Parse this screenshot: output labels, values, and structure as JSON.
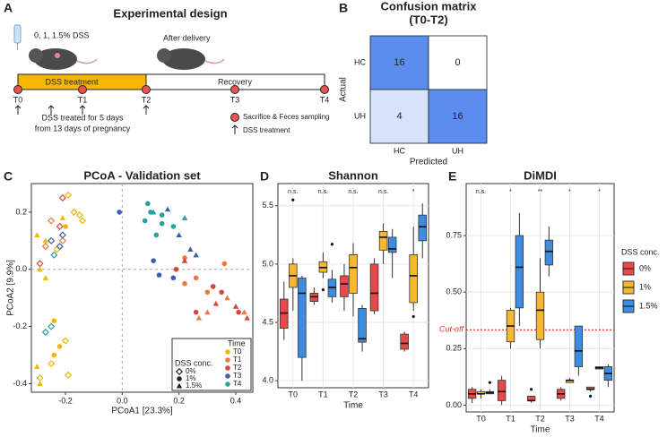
{
  "panel_labels": [
    "A",
    "B",
    "C",
    "D",
    "E"
  ],
  "diagram": {
    "title": "Experimental design",
    "dose": "0, 1, 1.5% DSS",
    "after": "After delivery",
    "phases": [
      "DSS treatment",
      "Recovery"
    ],
    "timepoints": [
      "T0",
      "T1",
      "T2",
      "T3",
      "T4"
    ],
    "note": [
      "DSS treated for 5 days",
      "from 13 days of pregnancy"
    ],
    "legend": [
      "Sacrifice & Feces sampling",
      "DSS treatment"
    ]
  },
  "chart_data": [
    {
      "type": "heatmap",
      "title": [
        "Confusion matrix",
        "(T0-T2)"
      ],
      "x_categories": [
        "HC",
        "UH"
      ],
      "y_categories": [
        "HC",
        "UH"
      ],
      "values": [
        [
          16,
          0
        ],
        [
          4,
          16
        ]
      ],
      "colors": [
        "#ffffff",
        "#5b8def"
      ],
      "xlabel": "Predicted",
      "ylabel": "Actual"
    },
    {
      "type": "scatter",
      "title": "PCoA - Validation set",
      "xlabel": "PCoA1  [23.3%]",
      "ylabel": "PCoA2  [9.9%]",
      "xlim": [
        -0.32,
        0.46
      ],
      "ylim": [
        -0.43,
        0.3
      ],
      "xticks": [
        -0.2,
        {
          "value": 0,
          "label": "0.0"
        },
        0.2,
        0.4
      ],
      "yticks": [
        -0.4,
        -0.2,
        {
          "value": 0,
          "label": "0.0"
        },
        0.2
      ],
      "zero_lines": true,
      "legend_time": {
        "title": "Time"
      },
      "legend_shape": {
        "title": "DSS conc.",
        "entries": [
          {
            "name": "0%",
            "shape": "diamond"
          },
          {
            "name": "1%",
            "shape": "circle"
          },
          {
            "name": "1.5%",
            "shape": "triangle"
          }
        ]
      },
      "series": [
        {
          "name": "T0",
          "color": "#f2b705",
          "groups": [
            {
              "shape": "diamond",
              "x": [
                -0.19,
                -0.17,
                -0.15,
                -0.14,
                -0.23,
                -0.2,
                -0.25,
                -0.29,
                -0.19
              ],
              "y": [
                0.26,
                0.2,
                0.19,
                0.17,
                0.07,
                -0.25,
                -0.33,
                -0.38,
                -0.37
              ]
            },
            {
              "shape": "circle",
              "x": [
                -0.2,
                -0.24,
                -0.22,
                -0.24
              ],
              "y": [
                0.15,
                -0.18,
                -0.27,
                -0.3
              ]
            },
            {
              "shape": "triangle",
              "x": [
                -0.3,
                -0.27,
                -0.29,
                -0.27,
                -0.3,
                -0.29,
                -0.21
              ],
              "y": [
                0.12,
                0.1,
                0.0,
                -0.03,
                -0.34,
                -0.4,
                0.18
              ]
            }
          ]
        },
        {
          "name": "T1",
          "color": "#ec7a3a",
          "groups": [
            {
              "shape": "diamond",
              "x": [
                -0.25,
                -0.27,
                -0.21
              ],
              "y": [
                0.17,
                0.08,
                0.1
              ]
            },
            {
              "shape": "circle",
              "x": [
                0.22,
                0.26,
                0.3,
                0.22,
                0.36
              ],
              "y": [
                0.04,
                -0.03,
                -0.08,
                -0.05,
                0.02
              ]
            },
            {
              "shape": "triangle",
              "x": [
                0.37,
                0.3,
                0.43,
                0.27
              ],
              "y": [
                -0.1,
                -0.15,
                -0.15,
                -0.17
              ]
            }
          ]
        },
        {
          "name": "T2",
          "color": "#d8453b",
          "groups": [
            {
              "shape": "diamond",
              "x": [
                -0.21,
                -0.29,
                -0.22
              ],
              "y": [
                0.25,
                0.02,
                0.15
              ]
            },
            {
              "shape": "circle",
              "x": [
                0.32,
                0.26,
                0.19,
                0.35,
                0.41
              ],
              "y": [
                -0.06,
                -0.15,
                0.0,
                -0.08,
                -0.15
              ]
            },
            {
              "shape": "triangle",
              "x": [
                0.4,
                0.44,
                0.33,
                0.22
              ],
              "y": [
                -0.13,
                -0.17,
                -0.12,
                0.03
              ]
            }
          ]
        },
        {
          "name": "T3",
          "color": "#3a5fae",
          "groups": [
            {
              "shape": "diamond",
              "x": [
                -0.21,
                -0.25,
                -0.22
              ],
              "y": [
                0.12,
                0.1,
                0.08
              ]
            },
            {
              "shape": "circle",
              "x": [
                -0.01,
                0.13,
                0.18,
                0.11
              ],
              "y": [
                0.2,
                -0.02,
                -0.03,
                0.03
              ]
            },
            {
              "shape": "triangle",
              "x": [
                0.16,
                0.2,
                0.24,
                0.26
              ],
              "y": [
                0.21,
                0.12,
                0.07,
                0.05
              ]
            }
          ]
        },
        {
          "name": "T4",
          "color": "#2aa198",
          "groups": [
            {
              "shape": "diamond",
              "x": [
                -0.25,
                -0.27,
                -0.24
              ],
              "y": [
                -0.2,
                -0.22,
                0.05
              ]
            },
            {
              "shape": "circle",
              "x": [
                0.09,
                0.1,
                0.14,
                0.14,
                0.12,
                0.18,
                0.08
              ],
              "y": [
                0.23,
                0.2,
                0.16,
                0.19,
                0.12,
                0.15,
                0.17
              ]
            },
            {
              "shape": "triangle",
              "x": [
                0.11,
                0.22
              ],
              "y": [
                0.2,
                0.18
              ]
            }
          ]
        }
      ]
    },
    {
      "type": "box",
      "title": "Shannon",
      "xlabel": "Time",
      "categories": [
        "T0",
        "T1",
        "T2",
        "T3",
        "T4"
      ],
      "annotations": [
        "n.s.",
        "n.s.",
        "n.s.",
        "n.s.",
        "*"
      ],
      "ylim": [
        3.94,
        5.69
      ],
      "yticks": [
        {
          "value": 4,
          "label": "4.0"
        },
        4.5,
        {
          "value": 5,
          "label": "5.0"
        },
        5.5
      ],
      "grid": true,
      "legend": false,
      "series": [
        {
          "color": "#e84a4a",
          "boxes": [
            {
              "low": 4.35,
              "q1": 4.45,
              "median": 4.58,
              "q3": 4.7,
              "high": 4.85
            },
            {
              "low": 4.65,
              "q1": 4.68,
              "median": 4.72,
              "q3": 4.75,
              "high": 4.8
            },
            {
              "low": 4.6,
              "q1": 4.72,
              "median": 4.83,
              "q3": 4.9,
              "high": 5.0
            },
            {
              "low": 4.57,
              "q1": 4.6,
              "median": 4.75,
              "q3": 5.0,
              "high": 5.05
            },
            {
              "low": 4.25,
              "q1": 4.27,
              "median": 4.32,
              "q3": 4.4,
              "high": 4.42
            }
          ]
        },
        {
          "color": "#f7b731",
          "boxes": [
            {
              "low": 4.6,
              "q1": 4.8,
              "median": 4.9,
              "q3": 5.0,
              "high": 5.05,
              "outliers": [
                5.55
              ]
            },
            {
              "low": 4.88,
              "q1": 4.93,
              "median": 4.97,
              "q3": 5.02,
              "high": 5.1,
              "outliers": [
                4.78
              ]
            },
            {
              "low": 4.55,
              "q1": 4.75,
              "median": 4.97,
              "q3": 5.08,
              "high": 5.18
            },
            {
              "low": 5.0,
              "q1": 5.12,
              "median": 5.23,
              "q3": 5.28,
              "high": 5.35
            },
            {
              "low": 4.6,
              "q1": 4.67,
              "median": 4.9,
              "q3": 5.08,
              "high": 5.32,
              "outliers": [
                4.55
              ]
            }
          ]
        },
        {
          "color": "#3c8ddf",
          "boxes": [
            {
              "low": 4.0,
              "q1": 4.2,
              "median": 4.75,
              "q3": 4.88,
              "high": 4.9
            },
            {
              "low": 4.67,
              "q1": 4.72,
              "median": 4.8,
              "q3": 4.87,
              "high": 4.95,
              "outliers": [
                5.17
              ]
            },
            {
              "low": 4.25,
              "q1": 4.33,
              "median": 4.36,
              "q3": 4.62,
              "high": 4.65
            },
            {
              "low": 4.88,
              "q1": 5.1,
              "median": 5.13,
              "q3": 5.23,
              "high": 5.3
            },
            {
              "low": 5.05,
              "q1": 5.2,
              "median": 5.32,
              "q3": 5.42,
              "high": 5.52
            }
          ]
        }
      ]
    },
    {
      "type": "box",
      "title": "DiMDI",
      "xlabel": "Time",
      "categories": [
        "T0",
        "T1",
        "T2",
        "T3",
        "T4"
      ],
      "annotations": [
        "n.s.",
        "*",
        "**",
        "*",
        "*"
      ],
      "ylim": [
        -0.03,
        0.98
      ],
      "yticks": [
        {
          "value": 0,
          "label": "0.00"
        },
        0.25,
        {
          "value": 0.5,
          "label": "0.50"
        },
        0.75
      ],
      "grid": true,
      "legend": true,
      "legend_title": "DSS conc.",
      "cutoff": {
        "value": 0.333,
        "label": "Cut-off",
        "color": "#e8312a"
      },
      "series": [
        {
          "name": "0%",
          "color": "#e84a4a",
          "boxes": [
            {
              "low": 0.01,
              "q1": 0.03,
              "median": 0.05,
              "q3": 0.07,
              "high": 0.08
            },
            {
              "low": 0.0,
              "q1": 0.02,
              "median": 0.06,
              "q3": 0.11,
              "high": 0.13
            },
            {
              "low": 0.01,
              "q1": 0.02,
              "median": 0.02,
              "q3": 0.04,
              "high": 0.04,
              "outliers": [
                0.07
              ]
            },
            {
              "low": 0.02,
              "q1": 0.03,
              "median": 0.05,
              "q3": 0.07,
              "high": 0.08
            },
            {
              "low": 0.06,
              "q1": 0.07,
              "median": 0.07,
              "q3": 0.08,
              "high": 0.08,
              "outliers": [
                0.04
              ]
            }
          ]
        },
        {
          "name": "1%",
          "color": "#f7b731",
          "boxes": [
            {
              "low": 0.03,
              "q1": 0.05,
              "median": 0.05,
              "q3": 0.06,
              "high": 0.07
            },
            {
              "low": 0.25,
              "q1": 0.28,
              "median": 0.35,
              "q3": 0.42,
              "high": 0.43
            },
            {
              "low": 0.25,
              "q1": 0.29,
              "median": 0.42,
              "q3": 0.5,
              "high": 0.65
            },
            {
              "low": 0.1,
              "q1": 0.1,
              "median": 0.11,
              "q3": 0.11,
              "high": 0.12
            },
            {
              "low": 0.16,
              "q1": 0.16,
              "median": 0.165,
              "q3": 0.17,
              "high": 0.17
            }
          ]
        },
        {
          "name": "1.5%",
          "color": "#3c8ddf",
          "boxes": [
            {
              "low": 0.05,
              "q1": 0.05,
              "median": 0.055,
              "q3": 0.06,
              "high": 0.07,
              "outliers": [
                0.1
              ]
            },
            {
              "low": 0.35,
              "q1": 0.43,
              "median": 0.61,
              "q3": 0.75,
              "high": 0.85
            },
            {
              "low": 0.57,
              "q1": 0.62,
              "median": 0.68,
              "q3": 0.73,
              "high": 0.79
            },
            {
              "low": 0.13,
              "q1": 0.17,
              "median": 0.24,
              "q3": 0.35,
              "high": 0.35
            },
            {
              "low": 0.08,
              "q1": 0.11,
              "median": 0.14,
              "q3": 0.17,
              "high": 0.18
            }
          ]
        }
      ]
    }
  ]
}
